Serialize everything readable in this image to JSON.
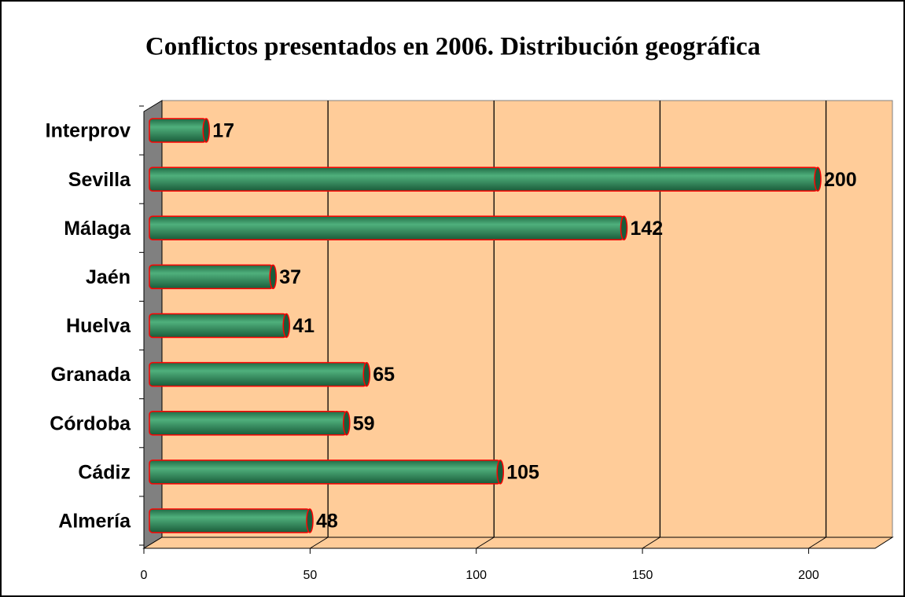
{
  "chart_data": {
    "type": "bar",
    "orientation": "horizontal",
    "title": "Conflictos presentados en 2006. Distribución geográfica",
    "categories": [
      "Almería",
      "Cádiz",
      "Córdoba",
      "Granada",
      "Huelva",
      "Jaén",
      "Málaga",
      "Sevilla",
      "Interprov"
    ],
    "values": [
      48,
      105,
      59,
      65,
      41,
      37,
      142,
      200,
      17
    ],
    "color": "#2e8b57",
    "xlim": [
      0,
      220
    ],
    "xticks": [
      0,
      50,
      100,
      150,
      200
    ],
    "grid": true
  }
}
